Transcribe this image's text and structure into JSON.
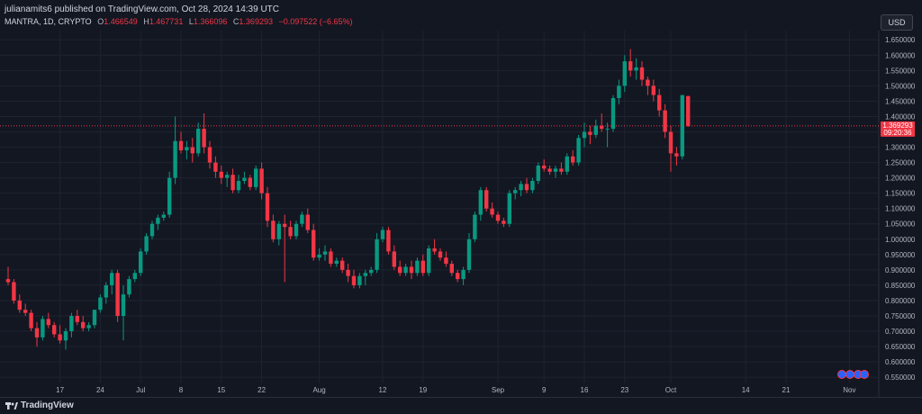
{
  "header": {
    "published": "julianamits6 published on TradingView.com, Oct 28, 2024 14:39 UTC",
    "symbol": "MANTRA, 1D, CRYPTO",
    "o_label": "O",
    "o_value": "1.466549",
    "h_label": "H",
    "h_value": "1.467731",
    "l_label": "L",
    "l_value": "1.366096",
    "c_label": "C",
    "c_value": "1.369293",
    "change": "−0.097522 (−6.65%)",
    "currency": "USD"
  },
  "last_price": {
    "value": "1.369293",
    "countdown": "09:20:36"
  },
  "footer": {
    "brand": "TradingView"
  },
  "colors": {
    "up": "#089981",
    "down": "#f23645",
    "background": "#131722",
    "grid": "#1f2330",
    "text": "#b2b5be"
  },
  "chart_data": {
    "type": "candlestick",
    "symbol": "MANTRA",
    "interval": "1D",
    "ylim": [
      0.53,
      1.68
    ],
    "y_ticks": [
      0.55,
      0.6,
      0.65,
      0.7,
      0.75,
      0.8,
      0.85,
      0.9,
      0.95,
      1.0,
      1.05,
      1.1,
      1.15,
      1.2,
      1.25,
      1.3,
      1.35,
      1.4,
      1.45,
      1.5,
      1.55,
      1.6,
      1.65
    ],
    "y_tick_labels": [
      "0.550000",
      "0.600000",
      "0.650000",
      "0.700000",
      "0.750000",
      "0.800000",
      "0.850000",
      "0.900000",
      "0.950000",
      "1.000000",
      "1.050000",
      "1.100000",
      "1.150000",
      "1.200000",
      "1.250000",
      "1.300000",
      "1.350000",
      "1.400000",
      "1.450000",
      "1.500000",
      "1.550000",
      "1.600000",
      "1.650000"
    ],
    "x_tick_labels": [
      {
        "label": "17",
        "index": 4
      },
      {
        "label": "24",
        "index": 11
      },
      {
        "label": "Jul",
        "index": 18
      },
      {
        "label": "8",
        "index": 25
      },
      {
        "label": "15",
        "index": 32
      },
      {
        "label": "22",
        "index": 39
      },
      {
        "label": "Aug",
        "index": 49
      },
      {
        "label": "12",
        "index": 60
      },
      {
        "label": "19",
        "index": 67
      },
      {
        "label": "Sep",
        "index": 80
      },
      {
        "label": "9",
        "index": 88
      },
      {
        "label": "16",
        "index": 95
      },
      {
        "label": "23",
        "index": 102
      },
      {
        "label": "Oct",
        "index": 110
      },
      {
        "label": "14",
        "index": 123
      },
      {
        "label": "21",
        "index": 130
      },
      {
        "label": "Nov",
        "index": 141
      }
    ],
    "candles": [
      [
        0.87,
        0.91,
        0.85,
        0.86
      ],
      [
        0.86,
        0.87,
        0.79,
        0.8
      ],
      [
        0.8,
        0.82,
        0.76,
        0.77
      ],
      [
        0.77,
        0.79,
        0.75,
        0.76
      ],
      [
        0.76,
        0.77,
        0.7,
        0.71
      ],
      [
        0.71,
        0.73,
        0.65,
        0.68
      ],
      [
        0.68,
        0.75,
        0.67,
        0.74
      ],
      [
        0.74,
        0.76,
        0.71,
        0.72
      ],
      [
        0.72,
        0.73,
        0.68,
        0.69
      ],
      [
        0.69,
        0.72,
        0.66,
        0.67
      ],
      [
        0.67,
        0.71,
        0.64,
        0.7
      ],
      [
        0.7,
        0.76,
        0.68,
        0.75
      ],
      [
        0.75,
        0.77,
        0.72,
        0.73
      ],
      [
        0.73,
        0.75,
        0.7,
        0.71
      ],
      [
        0.71,
        0.73,
        0.7,
        0.72
      ],
      [
        0.72,
        0.77,
        0.71,
        0.77
      ],
      [
        0.77,
        0.82,
        0.76,
        0.81
      ],
      [
        0.81,
        0.86,
        0.79,
        0.85
      ],
      [
        0.85,
        0.9,
        0.82,
        0.89
      ],
      [
        0.89,
        0.9,
        0.73,
        0.75
      ],
      [
        0.75,
        0.85,
        0.67,
        0.82
      ],
      [
        0.82,
        0.88,
        0.81,
        0.87
      ],
      [
        0.87,
        0.9,
        0.86,
        0.89
      ],
      [
        0.89,
        0.97,
        0.88,
        0.96
      ],
      [
        0.96,
        1.02,
        0.95,
        1.01
      ],
      [
        1.01,
        1.06,
        1.0,
        1.05
      ],
      [
        1.05,
        1.08,
        1.03,
        1.07
      ],
      [
        1.07,
        1.09,
        1.06,
        1.08
      ],
      [
        1.08,
        1.22,
        1.07,
        1.2
      ],
      [
        1.2,
        1.4,
        1.18,
        1.32
      ],
      [
        1.32,
        1.35,
        1.28,
        1.29
      ],
      [
        1.29,
        1.32,
        1.26,
        1.3
      ],
      [
        1.3,
        1.33,
        1.25,
        1.28
      ],
      [
        1.28,
        1.38,
        1.27,
        1.36
      ],
      [
        1.36,
        1.41,
        1.28,
        1.3
      ],
      [
        1.3,
        1.32,
        1.23,
        1.25
      ],
      [
        1.25,
        1.27,
        1.2,
        1.22
      ],
      [
        1.22,
        1.24,
        1.18,
        1.2
      ],
      [
        1.2,
        1.22,
        1.17,
        1.21
      ],
      [
        1.21,
        1.23,
        1.15,
        1.16
      ],
      [
        1.16,
        1.21,
        1.15,
        1.19
      ],
      [
        1.19,
        1.22,
        1.18,
        1.2
      ],
      [
        1.2,
        1.21,
        1.16,
        1.17
      ],
      [
        1.17,
        1.24,
        1.16,
        1.23
      ],
      [
        1.23,
        1.25,
        1.13,
        1.15
      ],
      [
        1.15,
        1.17,
        1.04,
        1.06
      ],
      [
        1.06,
        1.08,
        0.99,
        1.0
      ],
      [
        1.0,
        1.06,
        0.98,
        1.05
      ],
      [
        1.05,
        1.08,
        0.86,
        1.04
      ],
      [
        1.04,
        1.06,
        1.0,
        1.01
      ],
      [
        1.01,
        1.06,
        1.0,
        1.05
      ],
      [
        1.05,
        1.09,
        1.04,
        1.08
      ],
      [
        1.08,
        1.1,
        1.02,
        1.03
      ],
      [
        1.03,
        1.05,
        0.93,
        0.94
      ],
      [
        0.94,
        0.97,
        0.93,
        0.95
      ],
      [
        0.95,
        0.98,
        0.93,
        0.96
      ],
      [
        0.96,
        0.97,
        0.91,
        0.92
      ],
      [
        0.92,
        0.94,
        0.91,
        0.93
      ],
      [
        0.93,
        0.94,
        0.89,
        0.9
      ],
      [
        0.9,
        0.92,
        0.86,
        0.88
      ],
      [
        0.88,
        0.9,
        0.84,
        0.85
      ],
      [
        0.85,
        0.89,
        0.84,
        0.88
      ],
      [
        0.88,
        0.9,
        0.85,
        0.89
      ],
      [
        0.89,
        0.91,
        0.88,
        0.9
      ],
      [
        0.9,
        1.02,
        0.89,
        1.0
      ],
      [
        1.0,
        1.04,
        0.99,
        1.03
      ],
      [
        1.03,
        1.04,
        0.95,
        0.96
      ],
      [
        0.96,
        0.98,
        0.9,
        0.91
      ],
      [
        0.91,
        0.93,
        0.88,
        0.89
      ],
      [
        0.89,
        0.92,
        0.88,
        0.91
      ],
      [
        0.91,
        0.93,
        0.87,
        0.89
      ],
      [
        0.89,
        0.94,
        0.88,
        0.93
      ],
      [
        0.93,
        0.95,
        0.88,
        0.89
      ],
      [
        0.89,
        0.98,
        0.88,
        0.97
      ],
      [
        0.97,
        1.0,
        0.95,
        0.96
      ],
      [
        0.96,
        0.97,
        0.93,
        0.94
      ],
      [
        0.94,
        0.96,
        0.91,
        0.92
      ],
      [
        0.92,
        0.93,
        0.88,
        0.89
      ],
      [
        0.89,
        0.9,
        0.86,
        0.87
      ],
      [
        0.87,
        0.91,
        0.85,
        0.9
      ],
      [
        0.9,
        1.02,
        0.89,
        1.0
      ],
      [
        1.0,
        1.09,
        0.99,
        1.08
      ],
      [
        1.08,
        1.17,
        1.06,
        1.16
      ],
      [
        1.16,
        1.17,
        1.09,
        1.1
      ],
      [
        1.1,
        1.12,
        1.07,
        1.08
      ],
      [
        1.08,
        1.09,
        1.05,
        1.06
      ],
      [
        1.06,
        1.07,
        1.04,
        1.05
      ],
      [
        1.05,
        1.16,
        1.04,
        1.15
      ],
      [
        1.15,
        1.17,
        1.13,
        1.16
      ],
      [
        1.16,
        1.19,
        1.14,
        1.18
      ],
      [
        1.18,
        1.2,
        1.15,
        1.16
      ],
      [
        1.16,
        1.2,
        1.15,
        1.19
      ],
      [
        1.19,
        1.25,
        1.18,
        1.24
      ],
      [
        1.24,
        1.26,
        1.22,
        1.23
      ],
      [
        1.23,
        1.24,
        1.21,
        1.22
      ],
      [
        1.22,
        1.24,
        1.2,
        1.23
      ],
      [
        1.23,
        1.25,
        1.21,
        1.22
      ],
      [
        1.22,
        1.28,
        1.21,
        1.27
      ],
      [
        1.27,
        1.29,
        1.24,
        1.25
      ],
      [
        1.25,
        1.34,
        1.24,
        1.33
      ],
      [
        1.33,
        1.38,
        1.3,
        1.35
      ],
      [
        1.35,
        1.37,
        1.31,
        1.34
      ],
      [
        1.34,
        1.39,
        1.33,
        1.37
      ],
      [
        1.37,
        1.41,
        1.35,
        1.36
      ],
      [
        1.36,
        1.38,
        1.3,
        1.36
      ],
      [
        1.36,
        1.47,
        1.35,
        1.46
      ],
      [
        1.46,
        1.52,
        1.44,
        1.5
      ],
      [
        1.5,
        1.6,
        1.48,
        1.58
      ],
      [
        1.58,
        1.62,
        1.53,
        1.55
      ],
      [
        1.55,
        1.59,
        1.52,
        1.56
      ],
      [
        1.56,
        1.58,
        1.5,
        1.52
      ],
      [
        1.52,
        1.53,
        1.47,
        1.5
      ],
      [
        1.5,
        1.52,
        1.45,
        1.47
      ],
      [
        1.47,
        1.49,
        1.4,
        1.42
      ],
      [
        1.42,
        1.44,
        1.33,
        1.35
      ],
      [
        1.35,
        1.37,
        1.22,
        1.28
      ],
      [
        1.28,
        1.3,
        1.24,
        1.27
      ],
      [
        1.27,
        1.47,
        1.26,
        1.47
      ],
      [
        1.466549,
        1.467731,
        1.366096,
        1.369293
      ]
    ]
  }
}
